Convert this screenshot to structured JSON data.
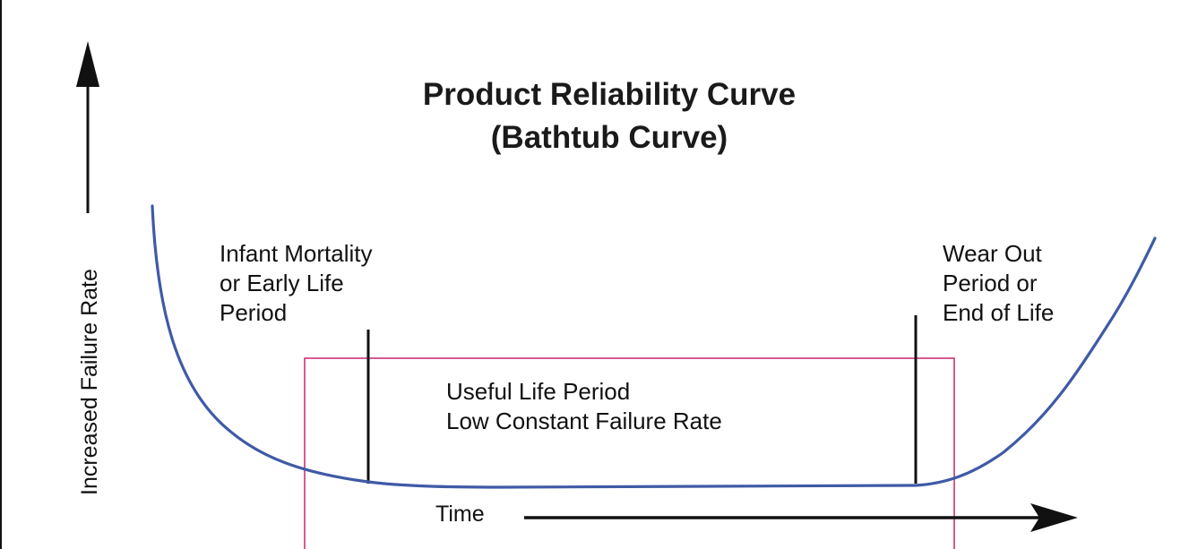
{
  "title": {
    "line1": "Product Reliability Curve",
    "line2": "(Bathtub Curve)"
  },
  "y_axis": {
    "label": "Increased Failure Rate"
  },
  "x_axis": {
    "label": "Time"
  },
  "regions": {
    "early_life": {
      "line1": "Infant Mortality",
      "line2": "or Early Life",
      "line3": "Period"
    },
    "useful_life": {
      "line1": "Useful Life Period",
      "line2": "Low Constant Failure Rate"
    },
    "wear_out": {
      "line1": "Wear Out",
      "line2": "Period  or",
      "line3": "End of Life"
    }
  },
  "colors": {
    "curve": "#3f5aa6",
    "highlight_box": "#cc3377",
    "ink": "#111111"
  }
}
